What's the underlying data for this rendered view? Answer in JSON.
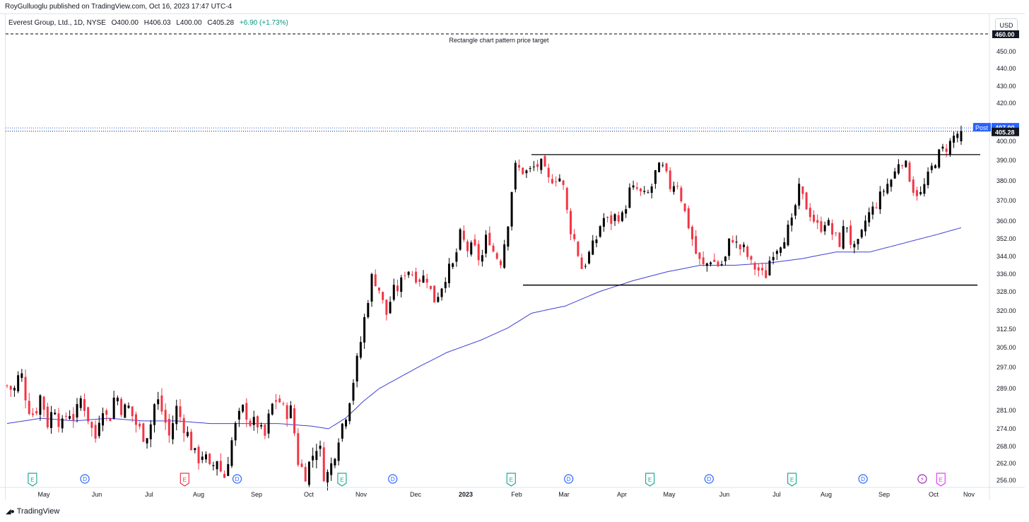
{
  "header": {
    "published": "RoyGulluoglu published on TradingView.com, Oct 16, 2023 17:47 UTC-4",
    "symbol": "Everest Group, Ltd., 1D, NYSE",
    "open": "O400.00",
    "high": "H406.03",
    "low": "L400.00",
    "close": "C405.28",
    "change": "+6.90 (+1.73%)",
    "currency": "USD"
  },
  "footer": {
    "brand": "TradingView"
  },
  "colors": {
    "up": "#000000",
    "down": "#f23645",
    "ma": "#3f3fd6",
    "accent": "#2962ff"
  },
  "chart_data": {
    "type": "candlestick",
    "annotation": "Rectangle chart pattern price target",
    "y_ticks": [
      "450.00",
      "440.00",
      "430.00",
      "420.00",
      "400.00",
      "390.00",
      "380.00",
      "370.00",
      "360.00",
      "352.00",
      "344.00",
      "336.00",
      "328.00",
      "320.00",
      "312.50",
      "305.00",
      "297.00",
      "289.00",
      "281.00",
      "274.00",
      "268.00",
      "262.00",
      "256.00"
    ],
    "y_tick_values": [
      450,
      440,
      430,
      420,
      400,
      390,
      380,
      370,
      360,
      352,
      344,
      336,
      328,
      320,
      312.5,
      305,
      297,
      289,
      281,
      274,
      268,
      262,
      256
    ],
    "x_ticks": [
      "May",
      "Jun",
      "Jul",
      "Aug",
      "Sep",
      "Oct",
      "Nov",
      "Dec",
      "2023",
      "Feb",
      "Mar",
      "Apr",
      "May",
      "Jun",
      "Jul",
      "Aug",
      "Sep",
      "Oct",
      "Nov"
    ],
    "price_labels": {
      "target": "460.00",
      "post_label": "Post",
      "post_value": "407.00",
      "last": "405.28"
    },
    "rectangle": {
      "top": 393,
      "bottom": 331
    },
    "ylim": [
      252,
      462
    ],
    "close_path": [
      [
        0,
        290
      ],
      [
        4,
        288
      ],
      [
        8,
        296
      ],
      [
        12,
        283
      ],
      [
        16,
        279
      ],
      [
        20,
        287
      ],
      [
        24,
        276
      ],
      [
        28,
        283
      ],
      [
        32,
        274
      ],
      [
        36,
        281
      ],
      [
        40,
        278
      ],
      [
        44,
        286
      ],
      [
        48,
        278
      ],
      [
        52,
        270
      ],
      [
        56,
        284
      ],
      [
        60,
        276
      ],
      [
        64,
        288
      ],
      [
        68,
        281
      ],
      [
        72,
        282
      ],
      [
        76,
        276
      ],
      [
        80,
        272
      ],
      [
        84,
        273
      ],
      [
        88,
        286
      ],
      [
        92,
        280
      ],
      [
        96,
        271
      ],
      [
        100,
        282
      ],
      [
        104,
        276
      ],
      [
        108,
        270
      ],
      [
        112,
        263
      ],
      [
        116,
        266
      ],
      [
        120,
        259
      ],
      [
        124,
        264
      ],
      [
        128,
        256
      ],
      [
        132,
        268
      ],
      [
        136,
        277
      ],
      [
        140,
        282
      ],
      [
        144,
        276
      ],
      [
        148,
        276
      ],
      [
        152,
        270
      ],
      [
        156,
        282
      ],
      [
        160,
        286
      ],
      [
        164,
        280
      ],
      [
        168,
        281
      ],
      [
        172,
        263
      ],
      [
        176,
        258
      ],
      [
        180,
        264
      ],
      [
        184,
        270
      ],
      [
        188,
        256
      ],
      [
        192,
        262
      ],
      [
        196,
        272
      ],
      [
        200,
        279
      ],
      [
        204,
        290
      ],
      [
        208,
        303
      ],
      [
        212,
        320
      ],
      [
        216,
        336
      ],
      [
        220,
        329
      ],
      [
        224,
        318
      ],
      [
        228,
        328
      ],
      [
        232,
        330
      ],
      [
        236,
        339
      ],
      [
        240,
        336
      ],
      [
        244,
        334
      ],
      [
        248,
        335
      ],
      [
        252,
        324
      ],
      [
        256,
        329
      ],
      [
        260,
        337
      ],
      [
        264,
        340
      ],
      [
        268,
        354
      ],
      [
        272,
        347
      ],
      [
        276,
        348
      ],
      [
        280,
        341
      ],
      [
        284,
        355
      ],
      [
        288,
        345
      ],
      [
        292,
        342
      ],
      [
        296,
        359
      ],
      [
        300,
        387
      ],
      [
        304,
        385
      ],
      [
        308,
        384
      ],
      [
        312,
        387
      ],
      [
        316,
        388
      ],
      [
        320,
        380
      ],
      [
        324,
        382
      ],
      [
        328,
        381
      ],
      [
        332,
        359
      ],
      [
        336,
        350
      ],
      [
        340,
        338
      ],
      [
        344,
        345
      ],
      [
        348,
        351
      ],
      [
        352,
        362
      ],
      [
        356,
        359
      ],
      [
        360,
        363
      ],
      [
        364,
        362
      ],
      [
        368,
        375
      ],
      [
        372,
        376
      ],
      [
        376,
        372
      ],
      [
        380,
        374
      ],
      [
        384,
        386
      ],
      [
        388,
        386
      ],
      [
        392,
        377
      ],
      [
        396,
        380
      ],
      [
        400,
        366
      ],
      [
        404,
        355
      ],
      [
        408,
        343
      ],
      [
        412,
        339
      ],
      [
        416,
        343
      ],
      [
        420,
        340
      ],
      [
        424,
        341
      ],
      [
        428,
        354
      ],
      [
        432,
        348
      ],
      [
        436,
        347
      ],
      [
        440,
        340
      ],
      [
        444,
        338
      ],
      [
        448,
        334
      ],
      [
        452,
        346
      ],
      [
        456,
        349
      ],
      [
        460,
        354
      ],
      [
        464,
        359
      ],
      [
        468,
        376
      ],
      [
        472,
        368
      ],
      [
        476,
        362
      ],
      [
        480,
        356
      ],
      [
        484,
        361
      ],
      [
        488,
        354
      ],
      [
        492,
        350
      ],
      [
        496,
        360
      ],
      [
        500,
        346
      ],
      [
        504,
        350
      ],
      [
        508,
        362
      ],
      [
        512,
        366
      ],
      [
        516,
        372
      ],
      [
        520,
        378
      ],
      [
        524,
        382
      ],
      [
        528,
        392
      ],
      [
        532,
        386
      ],
      [
        536,
        375
      ],
      [
        540,
        373
      ],
      [
        544,
        381
      ],
      [
        548,
        389
      ],
      [
        552,
        395
      ],
      [
        556,
        397
      ],
      [
        560,
        403
      ],
      [
        564,
        405.28
      ]
    ],
    "ma_path": [
      [
        0,
        276
      ],
      [
        20,
        278
      ],
      [
        40,
        277
      ],
      [
        60,
        278
      ],
      [
        80,
        277
      ],
      [
        100,
        277
      ],
      [
        120,
        276
      ],
      [
        140,
        276
      ],
      [
        160,
        276
      ],
      [
        180,
        275
      ],
      [
        190,
        274
      ],
      [
        200,
        278
      ],
      [
        210,
        284
      ],
      [
        220,
        289
      ],
      [
        240,
        296
      ],
      [
        260,
        303
      ],
      [
        280,
        308
      ],
      [
        296,
        313
      ],
      [
        310,
        319
      ],
      [
        330,
        322
      ],
      [
        350,
        328
      ],
      [
        370,
        333
      ],
      [
        390,
        337
      ],
      [
        410,
        340
      ],
      [
        430,
        340
      ],
      [
        450,
        341
      ],
      [
        470,
        343
      ],
      [
        490,
        346
      ],
      [
        510,
        346
      ],
      [
        530,
        350
      ],
      [
        550,
        354
      ],
      [
        564,
        357
      ]
    ],
    "events": [
      {
        "icon": "E",
        "x": 15
      },
      {
        "icon": "D",
        "x": 46
      },
      {
        "icon": "E",
        "x": 105
      },
      {
        "icon": "D",
        "x": 136
      },
      {
        "icon": "E",
        "x": 198
      },
      {
        "icon": "D",
        "x": 228
      },
      {
        "icon": "E",
        "x": 298
      },
      {
        "icon": "D",
        "x": 332
      },
      {
        "icon": "E",
        "x": 380
      },
      {
        "icon": "D",
        "x": 415
      },
      {
        "icon": "E",
        "x": 464
      },
      {
        "icon": "D",
        "x": 506
      },
      {
        "icon": "S",
        "x": 541
      },
      {
        "icon": "E",
        "x": 552
      }
    ]
  }
}
